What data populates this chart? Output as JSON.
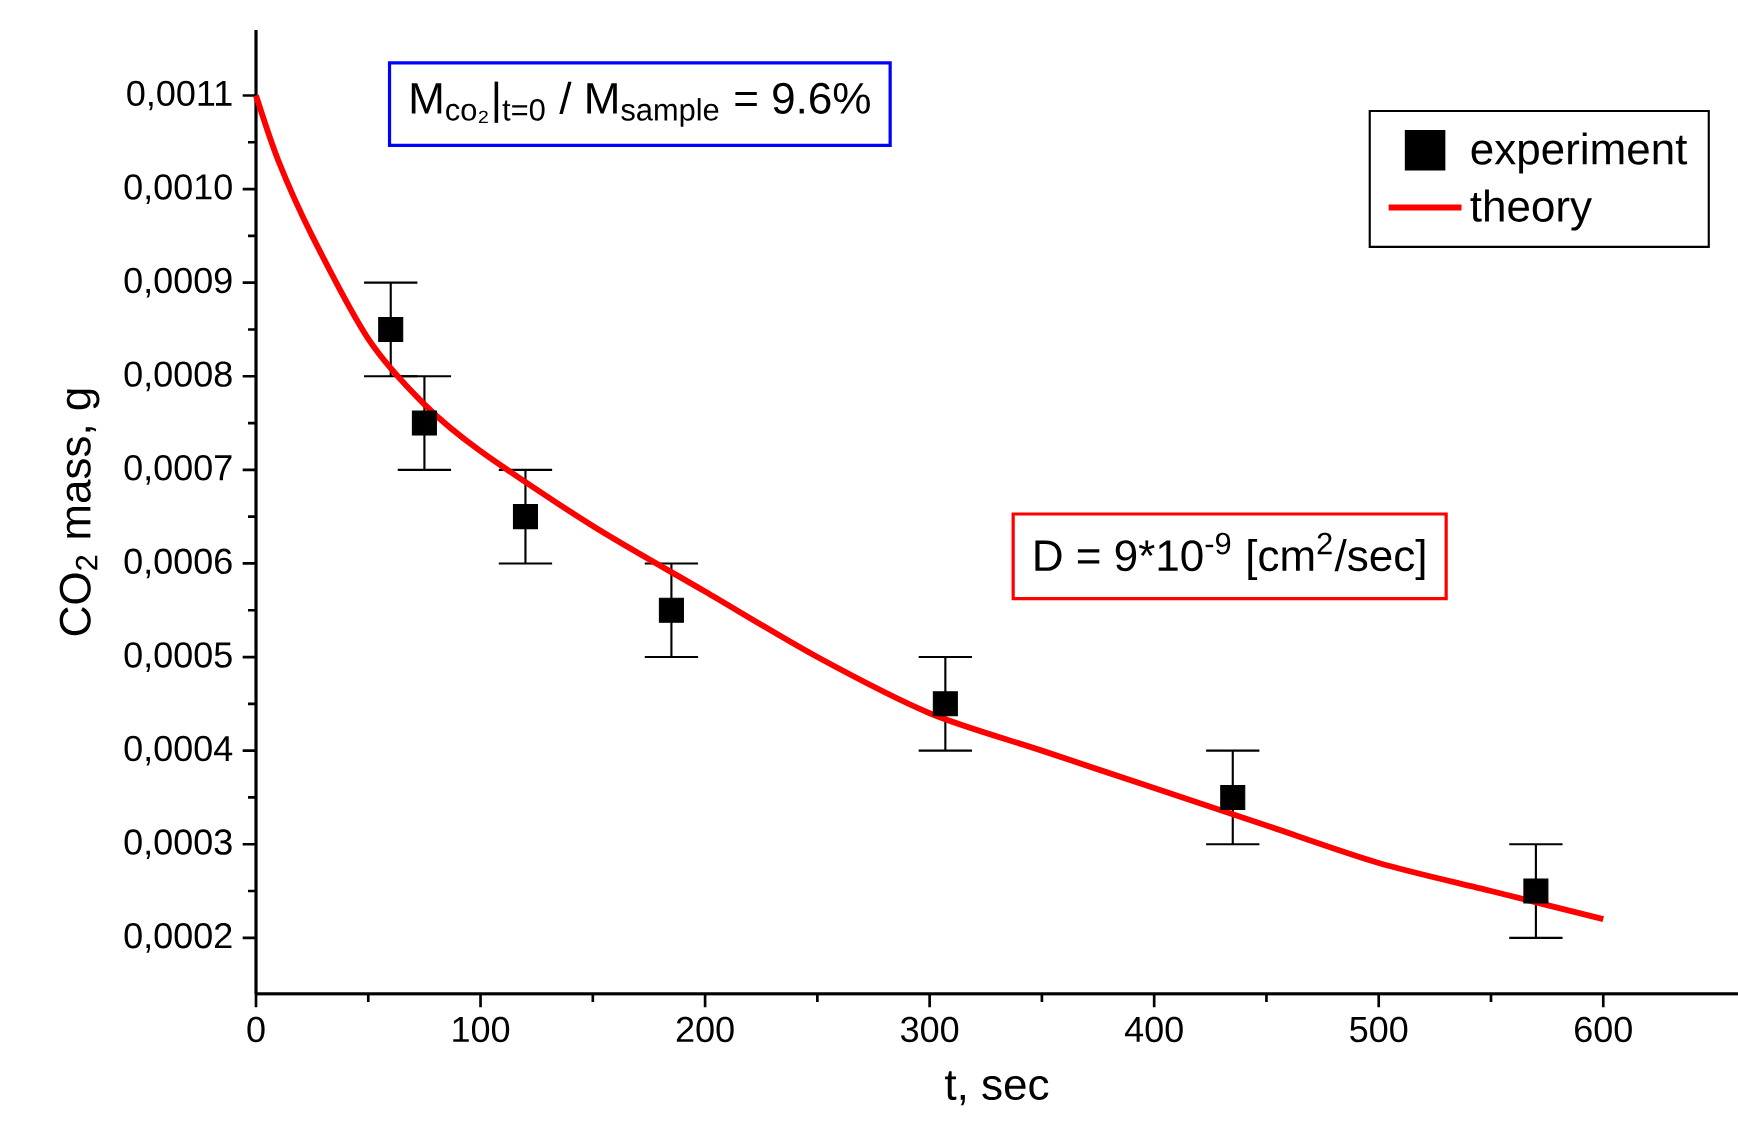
{
  "chart_data": {
    "type": "scatter",
    "xlabel": "t, sec",
    "ylabel": "CO$_{2}$ mass, g",
    "annotations": [
      "M$_{co₂}$|$_{t=0}$ / M$_{sample}$ = 9.6%",
      "D = 9*10$^{-9}$ [cm$^{2}$/sec]"
    ],
    "series": [
      {
        "name": "experiment",
        "color": "#000000",
        "marker": "square",
        "x": [
          60,
          75,
          120,
          185,
          307,
          435,
          570
        ],
        "values": [
          0.00085,
          0.00075,
          0.00065,
          0.00055,
          0.00045,
          0.00035,
          0.00025
        ],
        "errors": [
          5e-05,
          5e-05,
          5e-05,
          5e-05,
          5e-05,
          5e-05,
          5e-05
        ]
      },
      {
        "name": "theory",
        "type": "line",
        "color": "#ff0000",
        "line_style": "solid",
        "x": [
          0,
          10,
          25,
          50,
          75,
          100,
          150,
          200,
          250,
          300,
          350,
          400,
          450,
          500,
          550,
          600
        ],
        "values": [
          0.0011,
          0.00103,
          0.00095,
          0.00084,
          0.00077,
          0.00072,
          0.00064,
          0.00057,
          0.0005,
          0.00044,
          0.0004,
          0.00036,
          0.00032,
          0.00028,
          0.00025,
          0.00022
        ]
      }
    ],
    "xlim": [
      0,
      660
    ],
    "ylim": [
      0.00014,
      0.00117
    ],
    "xticks": [
      0,
      100,
      200,
      300,
      400,
      500,
      600
    ],
    "yticks": [
      {
        "value": 0.0002,
        "label": "0,0002"
      },
      {
        "value": 0.0003,
        "label": "0,0003"
      },
      {
        "value": 0.0004,
        "label": "0,0004"
      },
      {
        "value": 0.0005,
        "label": "0,0005"
      },
      {
        "value": 0.0006,
        "label": "0,0006"
      },
      {
        "value": 0.0007,
        "label": "0,0007"
      },
      {
        "value": 0.0008,
        "label": "0,0008"
      },
      {
        "value": 0.0009,
        "label": "0,0009"
      },
      {
        "value": 0.001,
        "label": "0,0010"
      },
      {
        "value": 0.0011,
        "label": "0,0011"
      }
    ],
    "grid": false,
    "legend": "top right"
  }
}
